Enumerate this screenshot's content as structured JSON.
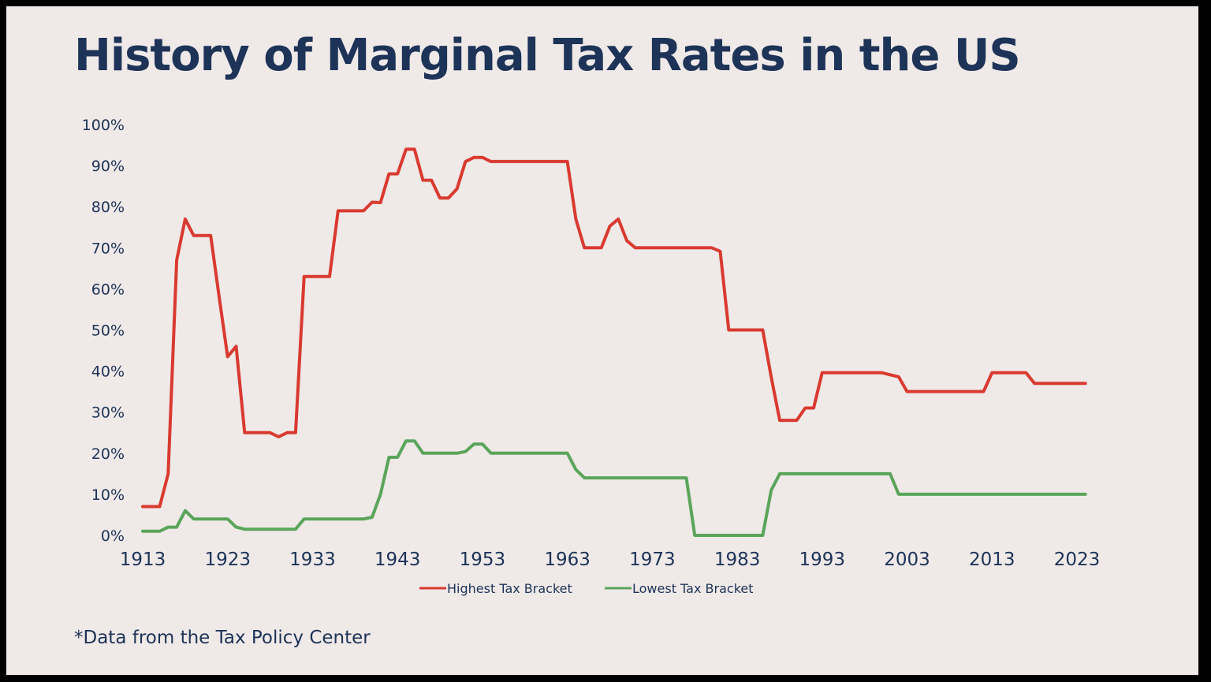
{
  "title": "History of Marginal Tax Rates in the US",
  "footnote": "*Data from the Tax Policy Center",
  "colors": {
    "background": "#efe9e8",
    "text": "#1d3357",
    "highest": "#d93a30",
    "lowest": "#5aa55a"
  },
  "chart_data": {
    "type": "line",
    "title": "History of Marginal Tax Rates in the US",
    "xlabel": "",
    "ylabel": "",
    "xlim": [
      1913,
      2023
    ],
    "ylim": [
      0,
      100
    ],
    "x_ticks": [
      "1913",
      "1923",
      "1933",
      "1943",
      "1953",
      "1963",
      "1973",
      "1983",
      "1993",
      "2003",
      "2013",
      "2023"
    ],
    "y_ticks": [
      "0%",
      "10%",
      "20%",
      "30%",
      "40%",
      "50%",
      "60%",
      "70%",
      "80%",
      "90%",
      "100%"
    ],
    "grid": false,
    "legend_position": "bottom-center",
    "series": [
      {
        "name": "Highest Tax Bracket",
        "color": "#d93a30",
        "points": [
          [
            1913,
            7
          ],
          [
            1914,
            7
          ],
          [
            1915,
            7
          ],
          [
            1916,
            15
          ],
          [
            1917,
            67
          ],
          [
            1918,
            77
          ],
          [
            1919,
            73
          ],
          [
            1920,
            73
          ],
          [
            1921,
            73
          ],
          [
            1922,
            58
          ],
          [
            1923,
            43.5
          ],
          [
            1924,
            46
          ],
          [
            1925,
            25
          ],
          [
            1926,
            25
          ],
          [
            1927,
            25
          ],
          [
            1928,
            25
          ],
          [
            1929,
            24
          ],
          [
            1930,
            25
          ],
          [
            1931,
            25
          ],
          [
            1932,
            63
          ],
          [
            1933,
            63
          ],
          [
            1934,
            63
          ],
          [
            1935,
            63
          ],
          [
            1936,
            79
          ],
          [
            1937,
            79
          ],
          [
            1938,
            79
          ],
          [
            1939,
            79
          ],
          [
            1940,
            81.1
          ],
          [
            1941,
            81
          ],
          [
            1942,
            88
          ],
          [
            1943,
            88
          ],
          [
            1944,
            94
          ],
          [
            1945,
            94
          ],
          [
            1946,
            86.45
          ],
          [
            1947,
            86.45
          ],
          [
            1948,
            82.13
          ],
          [
            1949,
            82.13
          ],
          [
            1950,
            84.36
          ],
          [
            1951,
            91
          ],
          [
            1952,
            92
          ],
          [
            1953,
            92
          ],
          [
            1954,
            91
          ],
          [
            1955,
            91
          ],
          [
            1956,
            91
          ],
          [
            1957,
            91
          ],
          [
            1958,
            91
          ],
          [
            1959,
            91
          ],
          [
            1960,
            91
          ],
          [
            1961,
            91
          ],
          [
            1962,
            91
          ],
          [
            1963,
            91
          ],
          [
            1964,
            77
          ],
          [
            1965,
            70
          ],
          [
            1966,
            70
          ],
          [
            1967,
            70
          ],
          [
            1968,
            75.25
          ],
          [
            1969,
            77
          ],
          [
            1970,
            71.75
          ],
          [
            1971,
            70
          ],
          [
            1972,
            70
          ],
          [
            1973,
            70
          ],
          [
            1974,
            70
          ],
          [
            1975,
            70
          ],
          [
            1976,
            70
          ],
          [
            1977,
            70
          ],
          [
            1978,
            70
          ],
          [
            1979,
            70
          ],
          [
            1980,
            70
          ],
          [
            1981,
            69.13
          ],
          [
            1982,
            50
          ],
          [
            1983,
            50
          ],
          [
            1984,
            50
          ],
          [
            1985,
            50
          ],
          [
            1986,
            50
          ],
          [
            1987,
            38.5
          ],
          [
            1988,
            28
          ],
          [
            1989,
            28
          ],
          [
            1990,
            28
          ],
          [
            1991,
            31
          ],
          [
            1992,
            31
          ],
          [
            1993,
            39.6
          ],
          [
            1994,
            39.6
          ],
          [
            1995,
            39.6
          ],
          [
            1996,
            39.6
          ],
          [
            1997,
            39.6
          ],
          [
            1998,
            39.6
          ],
          [
            1999,
            39.6
          ],
          [
            2000,
            39.6
          ],
          [
            2001,
            39.1
          ],
          [
            2002,
            38.6
          ],
          [
            2003,
            35
          ],
          [
            2004,
            35
          ],
          [
            2005,
            35
          ],
          [
            2006,
            35
          ],
          [
            2007,
            35
          ],
          [
            2008,
            35
          ],
          [
            2009,
            35
          ],
          [
            2010,
            35
          ],
          [
            2011,
            35
          ],
          [
            2012,
            35
          ],
          [
            2013,
            39.6
          ],
          [
            2014,
            39.6
          ],
          [
            2015,
            39.6
          ],
          [
            2016,
            39.6
          ],
          [
            2017,
            39.6
          ],
          [
            2018,
            37
          ],
          [
            2019,
            37
          ],
          [
            2020,
            37
          ],
          [
            2021,
            37
          ],
          [
            2022,
            37
          ],
          [
            2023,
            37
          ],
          [
            2024,
            37
          ]
        ]
      },
      {
        "name": "Lowest Tax Bracket",
        "color": "#5aa55a",
        "points": [
          [
            1913,
            1
          ],
          [
            1914,
            1
          ],
          [
            1915,
            1
          ],
          [
            1916,
            2
          ],
          [
            1917,
            2
          ],
          [
            1918,
            6
          ],
          [
            1919,
            4
          ],
          [
            1920,
            4
          ],
          [
            1921,
            4
          ],
          [
            1922,
            4
          ],
          [
            1923,
            4
          ],
          [
            1924,
            2
          ],
          [
            1925,
            1.5
          ],
          [
            1926,
            1.5
          ],
          [
            1927,
            1.5
          ],
          [
            1928,
            1.5
          ],
          [
            1929,
            1.5
          ],
          [
            1930,
            1.5
          ],
          [
            1931,
            1.5
          ],
          [
            1932,
            4
          ],
          [
            1933,
            4
          ],
          [
            1934,
            4
          ],
          [
            1935,
            4
          ],
          [
            1936,
            4
          ],
          [
            1937,
            4
          ],
          [
            1938,
            4
          ],
          [
            1939,
            4
          ],
          [
            1940,
            4.4
          ],
          [
            1941,
            10
          ],
          [
            1942,
            19
          ],
          [
            1943,
            19
          ],
          [
            1944,
            23
          ],
          [
            1945,
            23
          ],
          [
            1946,
            20
          ],
          [
            1947,
            20
          ],
          [
            1948,
            20
          ],
          [
            1949,
            20
          ],
          [
            1950,
            20
          ],
          [
            1951,
            20.4
          ],
          [
            1952,
            22.2
          ],
          [
            1953,
            22.2
          ],
          [
            1954,
            20
          ],
          [
            1955,
            20
          ],
          [
            1956,
            20
          ],
          [
            1957,
            20
          ],
          [
            1958,
            20
          ],
          [
            1959,
            20
          ],
          [
            1960,
            20
          ],
          [
            1961,
            20
          ],
          [
            1962,
            20
          ],
          [
            1963,
            20
          ],
          [
            1964,
            16
          ],
          [
            1965,
            14
          ],
          [
            1966,
            14
          ],
          [
            1967,
            14
          ],
          [
            1968,
            14
          ],
          [
            1969,
            14
          ],
          [
            1970,
            14
          ],
          [
            1971,
            14
          ],
          [
            1972,
            14
          ],
          [
            1973,
            14
          ],
          [
            1974,
            14
          ],
          [
            1975,
            14
          ],
          [
            1976,
            14
          ],
          [
            1977,
            14
          ],
          [
            1978,
            0
          ],
          [
            1979,
            0
          ],
          [
            1980,
            0
          ],
          [
            1981,
            0
          ],
          [
            1982,
            0
          ],
          [
            1983,
            0
          ],
          [
            1984,
            0
          ],
          [
            1985,
            0
          ],
          [
            1986,
            0
          ],
          [
            1987,
            11
          ],
          [
            1988,
            15
          ],
          [
            1989,
            15
          ],
          [
            1990,
            15
          ],
          [
            1991,
            15
          ],
          [
            1992,
            15
          ],
          [
            1993,
            15
          ],
          [
            1994,
            15
          ],
          [
            1995,
            15
          ],
          [
            1996,
            15
          ],
          [
            1997,
            15
          ],
          [
            1998,
            15
          ],
          [
            1999,
            15
          ],
          [
            2000,
            15
          ],
          [
            2001,
            15
          ],
          [
            2002,
            10
          ],
          [
            2003,
            10
          ],
          [
            2004,
            10
          ],
          [
            2005,
            10
          ],
          [
            2006,
            10
          ],
          [
            2007,
            10
          ],
          [
            2008,
            10
          ],
          [
            2009,
            10
          ],
          [
            2010,
            10
          ],
          [
            2011,
            10
          ],
          [
            2012,
            10
          ],
          [
            2013,
            10
          ],
          [
            2014,
            10
          ],
          [
            2015,
            10
          ],
          [
            2016,
            10
          ],
          [
            2017,
            10
          ],
          [
            2018,
            10
          ],
          [
            2019,
            10
          ],
          [
            2020,
            10
          ],
          [
            2021,
            10
          ],
          [
            2022,
            10
          ],
          [
            2023,
            10
          ],
          [
            2024,
            10
          ]
        ]
      }
    ]
  }
}
